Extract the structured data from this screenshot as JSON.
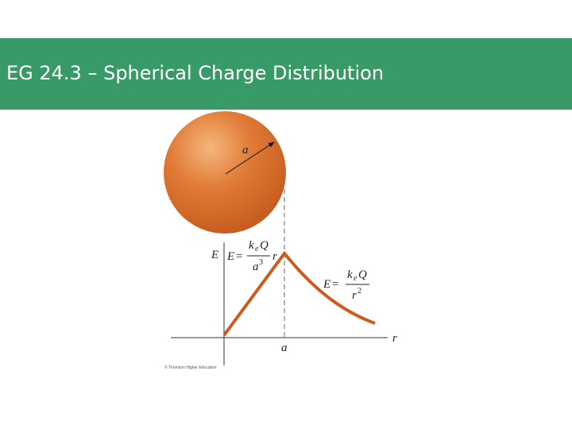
{
  "header": {
    "title": "EG 24.3 – Spherical Charge Distribution"
  },
  "sphere": {
    "radius_label": "a"
  },
  "graph": {
    "y_axis_label": "E",
    "x_axis_label": "r",
    "x_tick_label": "a",
    "inside_formula": {
      "lhs": "E",
      "equals": "=",
      "k": "k",
      "sub": "e",
      "Q": "Q",
      "den": "a",
      "exp": "3",
      "factor": "r"
    },
    "outside_formula": {
      "lhs": "E",
      "equals": "=",
      "k": "k",
      "sub": "e",
      "Q": "Q",
      "den": "r",
      "exp": "2"
    },
    "credit": "© Thomson Higher Education"
  }
}
